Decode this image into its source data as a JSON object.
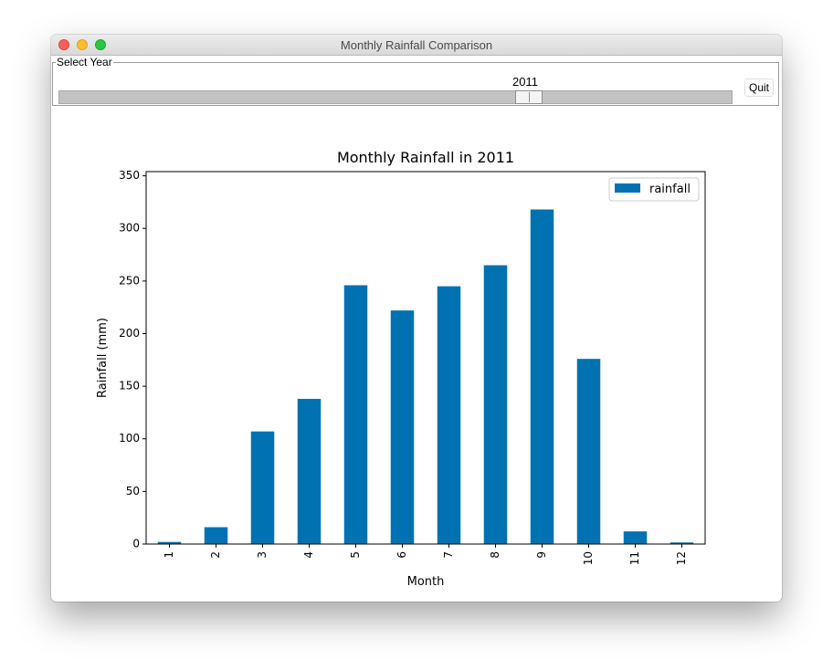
{
  "window": {
    "title": "Monthly Rainfall Comparison"
  },
  "controls": {
    "group_label": "Select Year",
    "year_value": "2011",
    "slider": {
      "min": 1980,
      "max": 2022,
      "value": 2011
    },
    "quit_label": "Quit"
  },
  "colors": {
    "bar": "#0072b2",
    "close": "#fe5f57",
    "minimize": "#febc2e",
    "maximize": "#28c840"
  },
  "chart_data": {
    "type": "bar",
    "title": "Monthly Rainfall in 2011",
    "xlabel": "Month",
    "ylabel": "Rainfall (mm)",
    "categories": [
      "1",
      "2",
      "3",
      "4",
      "5",
      "6",
      "7",
      "8",
      "9",
      "10",
      "11",
      "12"
    ],
    "series": [
      {
        "name": "rainfall",
        "values": [
          2,
          16,
          107,
          138,
          246,
          222,
          245,
          265,
          318,
          176,
          12,
          1.5
        ]
      }
    ],
    "ylim": [
      0,
      354
    ],
    "yticks": [
      0,
      50,
      100,
      150,
      200,
      250,
      300,
      350
    ],
    "grid": false,
    "legend": "top-right"
  }
}
